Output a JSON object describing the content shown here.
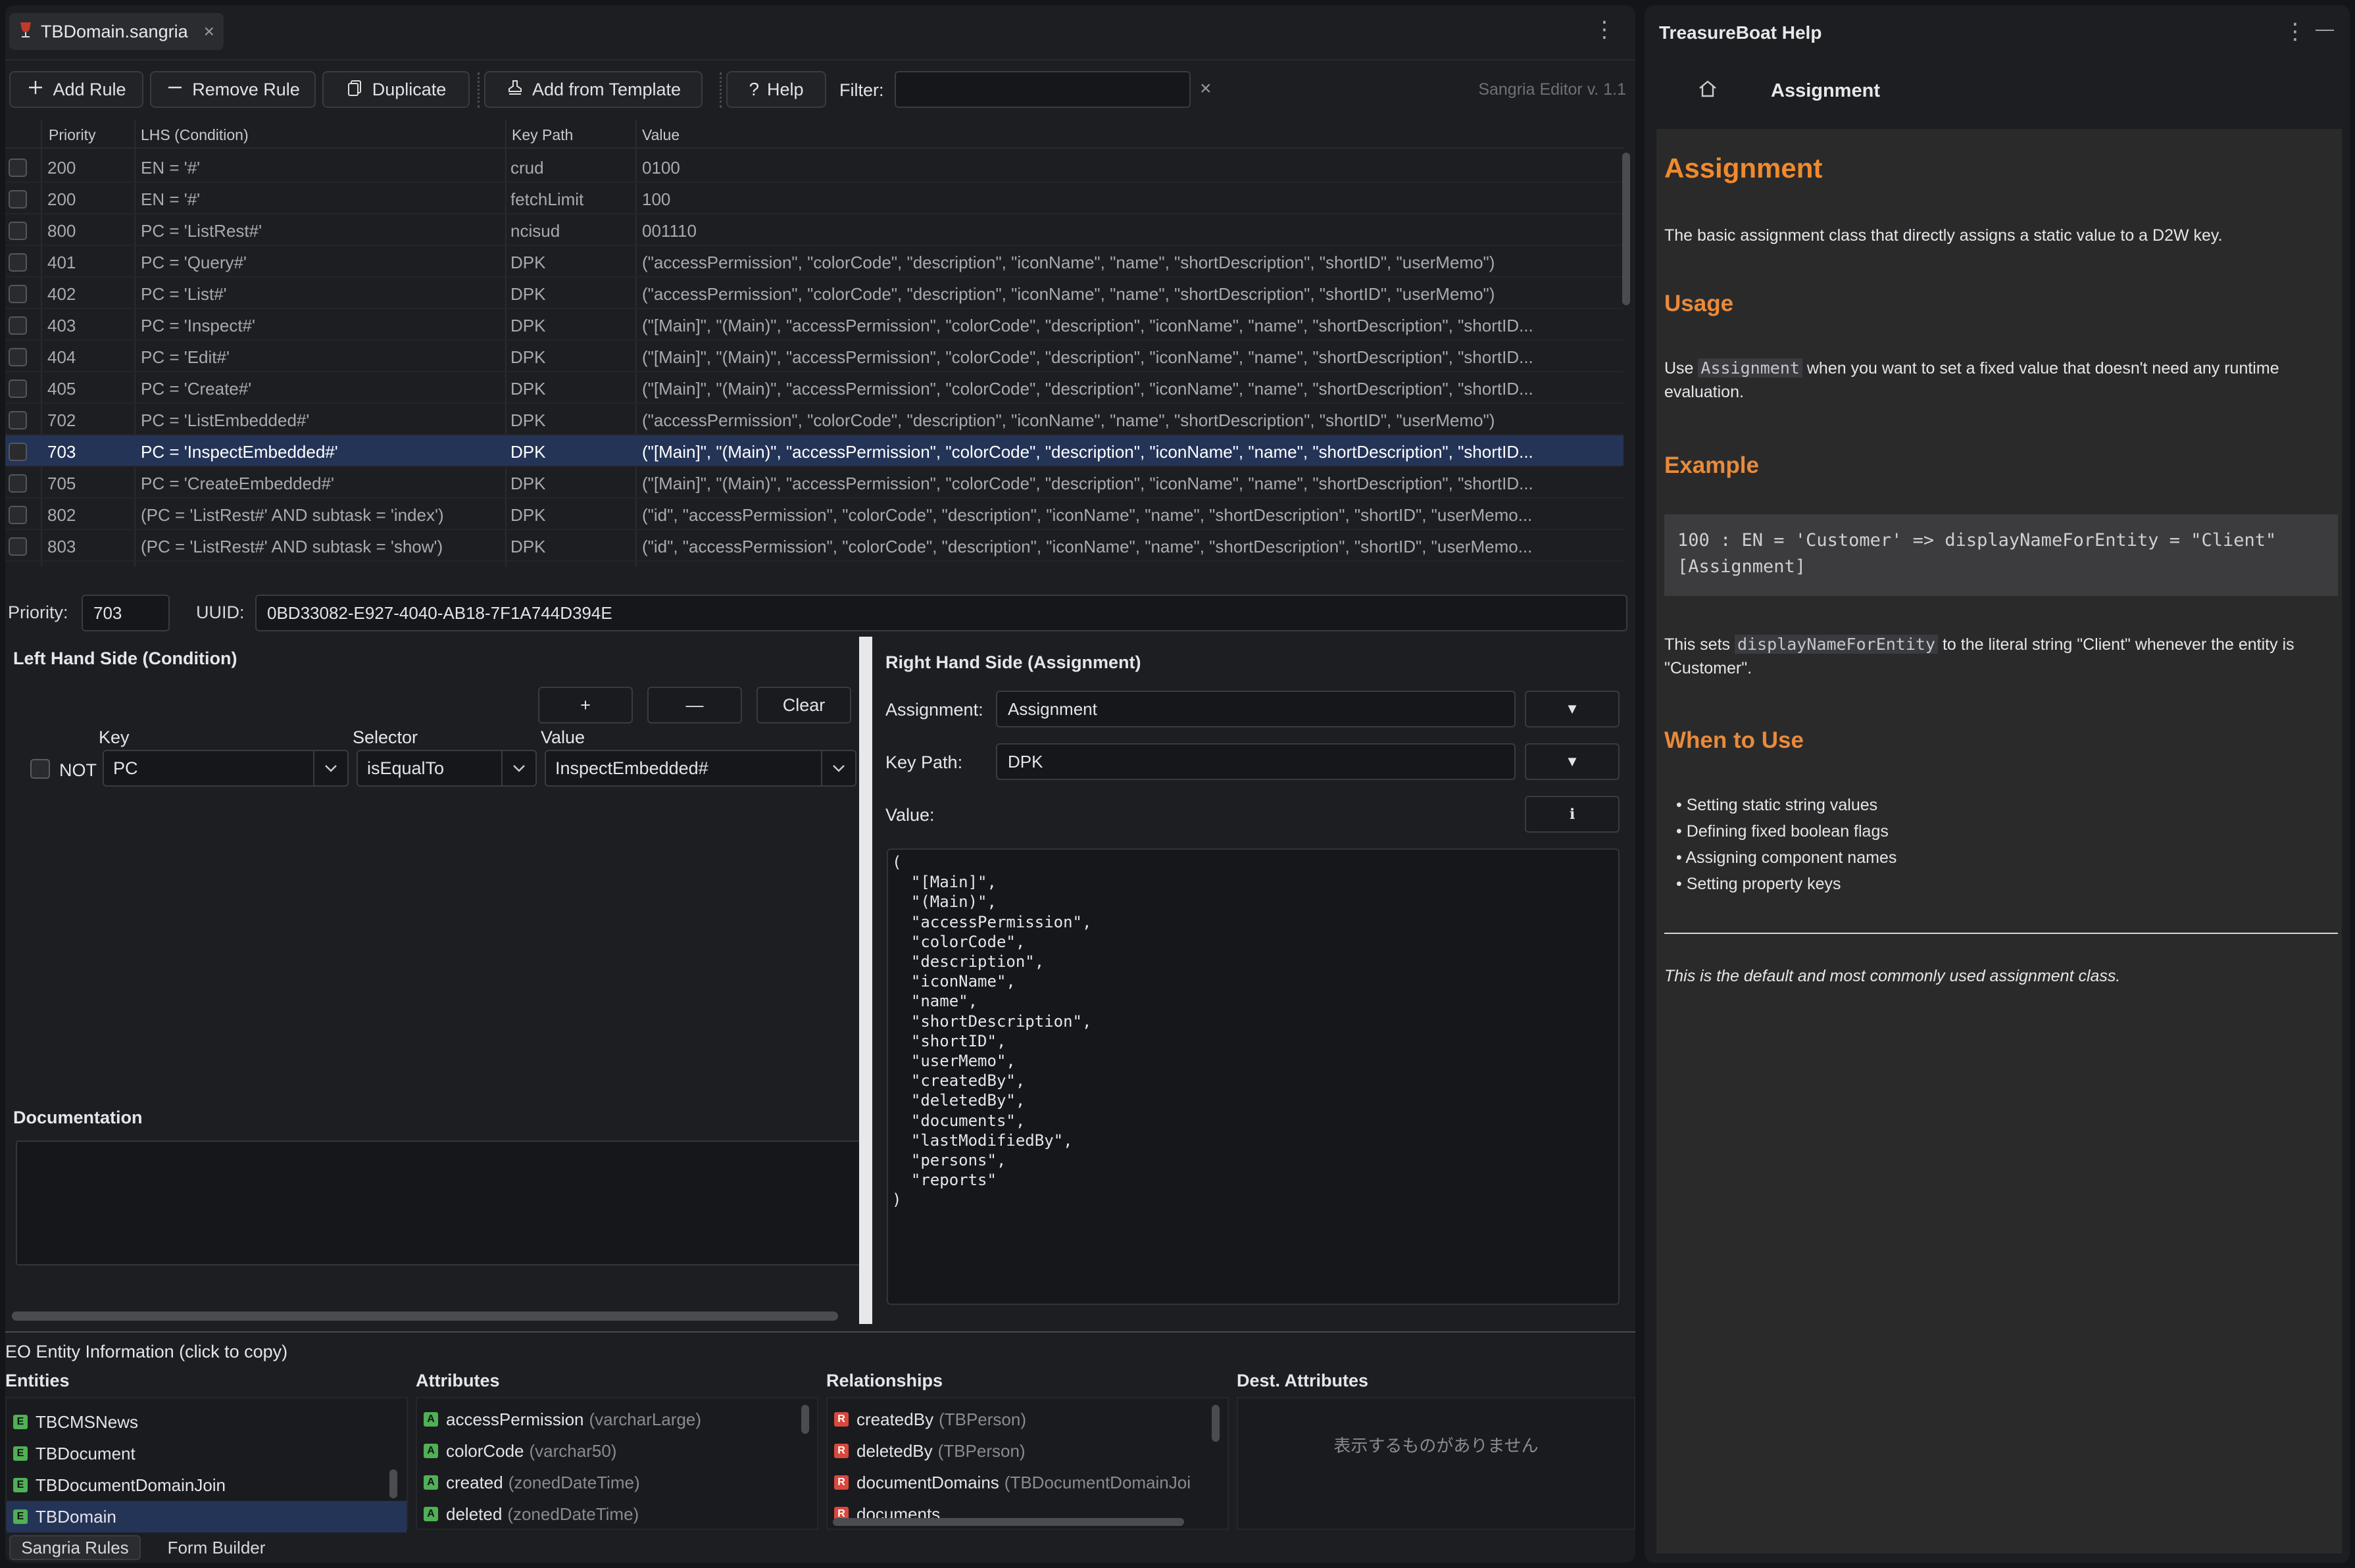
{
  "editor": {
    "tab_title": "TBDomain.sangria",
    "tab_close": "×",
    "menu_glyph": "⋮",
    "toolbar": {
      "add_rule": "Add Rule",
      "remove_rule": "Remove Rule",
      "duplicate": "Duplicate",
      "add_from_template": "Add from Template",
      "help": "Help",
      "filter_label": "Filter:",
      "filter_value": "",
      "filter_clear": "×",
      "version": "Sangria Editor v. 1.1"
    },
    "grid": {
      "columns": [
        "Priority",
        "LHS (Condition)",
        "Key Path",
        "Value"
      ],
      "rows": [
        {
          "priority": "200",
          "lhs": "EN = '#'",
          "key": "crud",
          "value": "0100"
        },
        {
          "priority": "200",
          "lhs": "EN = '#'",
          "key": "fetchLimit",
          "value": "100"
        },
        {
          "priority": "800",
          "lhs": "PC = 'ListRest#'",
          "key": "ncisud",
          "value": "001110"
        },
        {
          "priority": "401",
          "lhs": "PC = 'Query#'",
          "key": "DPK",
          "value": "(\"accessPermission\", \"colorCode\", \"description\", \"iconName\", \"name\", \"shortDescription\", \"shortID\", \"userMemo\")"
        },
        {
          "priority": "402",
          "lhs": "PC = 'List#'",
          "key": "DPK",
          "value": "(\"accessPermission\", \"colorCode\", \"description\", \"iconName\", \"name\", \"shortDescription\", \"shortID\", \"userMemo\")"
        },
        {
          "priority": "403",
          "lhs": "PC = 'Inspect#'",
          "key": "DPK",
          "value": "(\"[Main]\", \"(Main)\", \"accessPermission\", \"colorCode\", \"description\", \"iconName\", \"name\", \"shortDescription\", \"shortID..."
        },
        {
          "priority": "404",
          "lhs": "PC = 'Edit#'",
          "key": "DPK",
          "value": "(\"[Main]\", \"(Main)\", \"accessPermission\", \"colorCode\", \"description\", \"iconName\", \"name\", \"shortDescription\", \"shortID..."
        },
        {
          "priority": "405",
          "lhs": "PC = 'Create#'",
          "key": "DPK",
          "value": "(\"[Main]\", \"(Main)\", \"accessPermission\", \"colorCode\", \"description\", \"iconName\", \"name\", \"shortDescription\", \"shortID..."
        },
        {
          "priority": "702",
          "lhs": "PC = 'ListEmbedded#'",
          "key": "DPK",
          "value": "(\"accessPermission\", \"colorCode\", \"description\", \"iconName\", \"name\", \"shortDescription\", \"shortID\", \"userMemo\")"
        },
        {
          "priority": "703",
          "lhs": "PC = 'InspectEmbedded#'",
          "key": "DPK",
          "value": "(\"[Main]\", \"(Main)\", \"accessPermission\", \"colorCode\", \"description\", \"iconName\", \"name\", \"shortDescription\", \"shortID...",
          "selected": true
        },
        {
          "priority": "705",
          "lhs": "PC = 'CreateEmbedded#'",
          "key": "DPK",
          "value": "(\"[Main]\", \"(Main)\", \"accessPermission\", \"colorCode\", \"description\", \"iconName\", \"name\", \"shortDescription\", \"shortID..."
        },
        {
          "priority": "802",
          "lhs": "(PC = 'ListRest#' AND subtask = 'index')",
          "key": "DPK",
          "value": "(\"id\", \"accessPermission\", \"colorCode\", \"description\", \"iconName\", \"name\", \"shortDescription\", \"shortID\", \"userMemo..."
        },
        {
          "priority": "803",
          "lhs": "(PC = 'ListRest#' AND subtask = 'show')",
          "key": "DPK",
          "value": "(\"id\", \"accessPermission\", \"colorCode\", \"description\", \"iconName\", \"name\", \"shortDescription\", \"shortID\", \"userMemo..."
        }
      ]
    },
    "detail": {
      "priority_label": "Priority:",
      "priority_value": "703",
      "uuid_label": "UUID:",
      "uuid_value": "0BD33082-E927-4040-AB18-7F1A744D394E"
    },
    "lhs": {
      "title": "Left Hand Side (Condition)",
      "add": "+",
      "remove": "—",
      "clear": "Clear",
      "key_header": "Key",
      "selector_header": "Selector",
      "value_header": "Value",
      "not_label": "NOT",
      "key_value": "PC",
      "selector_value": "isEqualTo",
      "value_value": "InspectEmbedded#",
      "documentation_label": "Documentation",
      "documentation_value": ""
    },
    "rhs": {
      "title": "Right Hand Side (Assignment)",
      "assignment_label": "Assignment:",
      "assignment_value": "Assignment",
      "keypath_label": "Key Path:",
      "keypath_value": "DPK",
      "value_label": "Value:",
      "info_glyph": "ℹ",
      "dropdown_glyph": "▼",
      "value_text": "(\n  \"[Main]\",\n  \"(Main)\",\n  \"accessPermission\",\n  \"colorCode\",\n  \"description\",\n  \"iconName\",\n  \"name\",\n  \"shortDescription\",\n  \"shortID\",\n  \"userMemo\",\n  \"createdBy\",\n  \"deletedBy\",\n  \"documents\",\n  \"lastModifiedBy\",\n  \"persons\",\n  \"reports\"\n)"
    },
    "eo": {
      "title": "EO Entity Information (click to copy)",
      "entities_header": "Entities",
      "attributes_header": "Attributes",
      "relationships_header": "Relationships",
      "dest_header": "Dest. Attributes",
      "entities": [
        {
          "badge": "E",
          "name": "TBCMSNews"
        },
        {
          "badge": "E",
          "name": "TBDocument"
        },
        {
          "badge": "E",
          "name": "TBDocumentDomainJoin"
        },
        {
          "badge": "E",
          "name": "TBDomain",
          "selected": true
        }
      ],
      "attributes": [
        {
          "badge": "A",
          "name": "accessPermission",
          "type": "(varcharLarge)"
        },
        {
          "badge": "A",
          "name": "colorCode",
          "type": "(varchar50)"
        },
        {
          "badge": "A",
          "name": "created",
          "type": "(zonedDateTime)"
        },
        {
          "badge": "A",
          "name": "deleted",
          "type": "(zonedDateTime)"
        }
      ],
      "relationships": [
        {
          "badge": "R",
          "name": "createdBy",
          "type": "(TBPerson)"
        },
        {
          "badge": "R",
          "name": "deletedBy",
          "type": "(TBPerson)"
        },
        {
          "badge": "R",
          "name": "documentDomains",
          "type": "(TBDocumentDomainJoi"
        },
        {
          "badge": "R",
          "name": "documents",
          "type": ""
        }
      ],
      "dest_empty": "表示するものがありません"
    },
    "bottom_tabs": {
      "rules": "Sangria Rules",
      "form_builder": "Form Builder"
    }
  },
  "help": {
    "panel_title": "TreasureBoat Help",
    "menu_glyph": "⋮",
    "minimize_glyph": "—",
    "breadcrumb": "Assignment",
    "heading": "Assignment",
    "intro": "The basic assignment class that directly assigns a static value to a D2W key.",
    "usage_heading": "Usage",
    "usage_pre": "Use ",
    "usage_code": "Assignment",
    "usage_post": " when you want to set a fixed value that doesn't need any runtime evaluation.",
    "example_heading": "Example",
    "example_code": "100 : EN = 'Customer' => displayNameForEntity = \"Client\"\n[Assignment]",
    "example_pre": "This sets ",
    "example_code_inline": "displayNameForEntity",
    "example_post": " to the literal string \"Client\" whenever the entity is \"Customer\".",
    "when_heading": "When to Use",
    "when_items": [
      "Setting static string values",
      "Defining fixed boolean flags",
      "Assigning component names",
      "Setting property keys"
    ],
    "footer_note": "This is the default and most commonly used assignment class."
  }
}
